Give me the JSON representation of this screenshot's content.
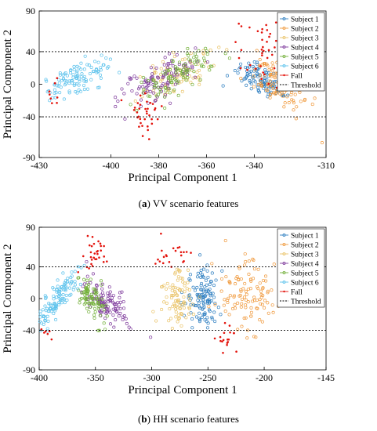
{
  "charts": [
    {
      "caption_letter": "a",
      "caption_text": "VV scenario features"
    },
    {
      "caption_letter": "b",
      "caption_text": "HH scenario features"
    }
  ],
  "colors": {
    "subject1": "#2f7fc1",
    "subject2": "#f09a3e",
    "subject3": "#eac46a",
    "subject4": "#7e3a9c",
    "subject5": "#73b03a",
    "subject6": "#5cc2ec",
    "fall": "#e3120b",
    "threshold": "#000000"
  },
  "chart_data": [
    {
      "type": "scatter",
      "title": "",
      "xlabel": "Principal Component 1",
      "ylabel": "Principal Component 2",
      "xlim": [
        -430,
        -310
      ],
      "ylim": [
        -90,
        90
      ],
      "xticks": [
        -430,
        -400,
        -380,
        -360,
        -340,
        -310
      ],
      "yticks": [
        -90,
        -40,
        0,
        40,
        90
      ],
      "legend_position": "top-right",
      "legend": [
        "Subject 1",
        "Subject 2",
        "Subject 3",
        "Subject 4",
        "Subject 5",
        "Subject 6",
        "Fall",
        "Threshold"
      ],
      "threshold": [
        40,
        -40
      ],
      "series": [
        {
          "name": "Subject 1",
          "clusters": [
            {
              "cx": -337,
              "cy": 5,
              "sx": 4,
              "sy": 14,
              "n": 110,
              "rot": -0.55
            }
          ]
        },
        {
          "name": "Subject 2",
          "clusters": [
            {
              "cx": -329,
              "cy": 0,
              "sx": 5,
              "sy": 18,
              "n": 120,
              "rot": -0.5
            }
          ]
        },
        {
          "name": "Subject 3",
          "clusters": [
            {
              "cx": -372,
              "cy": 12,
              "sx": 5,
              "sy": 18,
              "n": 90,
              "rot": 0.55
            }
          ]
        },
        {
          "name": "Subject 4",
          "clusters": [
            {
              "cx": -380,
              "cy": 5,
              "sx": 5,
              "sy": 18,
              "n": 110,
              "rot": 0.55
            }
          ]
        },
        {
          "name": "Subject 5",
          "clusters": [
            {
              "cx": -372,
              "cy": 10,
              "sx": 5,
              "sy": 18,
              "n": 100,
              "rot": 0.55
            }
          ]
        },
        {
          "name": "Subject 6",
          "clusters": [
            {
              "cx": -414,
              "cy": 8,
              "sx": 4,
              "sy": 15,
              "n": 110,
              "rot": 0.6
            }
          ]
        },
        {
          "name": "Fall",
          "clusters": [
            {
              "cx": -336,
              "cy": 38,
              "sx": 5,
              "sy": 22,
              "n": 45,
              "rot": 0
            },
            {
              "cx": -386,
              "cy": -40,
              "sx": 4,
              "sy": 18,
              "n": 35,
              "rot": 0
            },
            {
              "cx": -424,
              "cy": -10,
              "sx": 2,
              "sy": 8,
              "n": 8,
              "rot": 0
            }
          ]
        }
      ]
    },
    {
      "type": "scatter",
      "title": "",
      "xlabel": "Principal Component 1",
      "ylabel": "Principal Component 2",
      "xlim": [
        -400,
        -145
      ],
      "ylim": [
        -90,
        90
      ],
      "xticks": [
        -400,
        -350,
        -300,
        -250,
        -200,
        -145
      ],
      "yticks": [
        -90,
        -40,
        0,
        40,
        90
      ],
      "legend_position": "top-right",
      "legend": [
        "Subject 1",
        "Subject 2",
        "Subject 3",
        "Subject 4",
        "Subject 5",
        "Subject 6",
        "Fall",
        "Threshold"
      ],
      "threshold": [
        40,
        -40
      ],
      "series": [
        {
          "name": "Subject 1",
          "clusters": [
            {
              "cx": -255,
              "cy": 0,
              "sx": 8,
              "sy": 18,
              "n": 120,
              "rot": 0
            }
          ]
        },
        {
          "name": "Subject 2",
          "clusters": [
            {
              "cx": -215,
              "cy": 5,
              "sx": 15,
              "sy": 22,
              "n": 110,
              "rot": 0
            }
          ]
        },
        {
          "name": "Subject 3",
          "clusters": [
            {
              "cx": -278,
              "cy": 0,
              "sx": 8,
              "sy": 18,
              "n": 90,
              "rot": 0
            }
          ]
        },
        {
          "name": "Subject 4",
          "clusters": [
            {
              "cx": -340,
              "cy": -5,
              "sx": 7,
              "sy": 15,
              "n": 110,
              "rot": -0.3
            }
          ]
        },
        {
          "name": "Subject 5",
          "clusters": [
            {
              "cx": -352,
              "cy": 0,
              "sx": 5,
              "sy": 14,
              "n": 90,
              "rot": -0.2
            }
          ]
        },
        {
          "name": "Subject 6",
          "clusters": [
            {
              "cx": -383,
              "cy": 0,
              "sx": 5,
              "sy": 20,
              "n": 120,
              "rot": 0.3
            }
          ]
        },
        {
          "name": "Fall",
          "clusters": [
            {
              "cx": -350,
              "cy": 55,
              "sx": 6,
              "sy": 10,
              "n": 30,
              "rot": 0
            },
            {
              "cx": -283,
              "cy": 58,
              "sx": 10,
              "sy": 10,
              "n": 22,
              "rot": 0
            },
            {
              "cx": -235,
              "cy": -55,
              "sx": 6,
              "sy": 12,
              "n": 18,
              "rot": 0
            },
            {
              "cx": -392,
              "cy": -45,
              "sx": 3,
              "sy": 5,
              "n": 6,
              "rot": 0
            }
          ]
        }
      ]
    }
  ]
}
